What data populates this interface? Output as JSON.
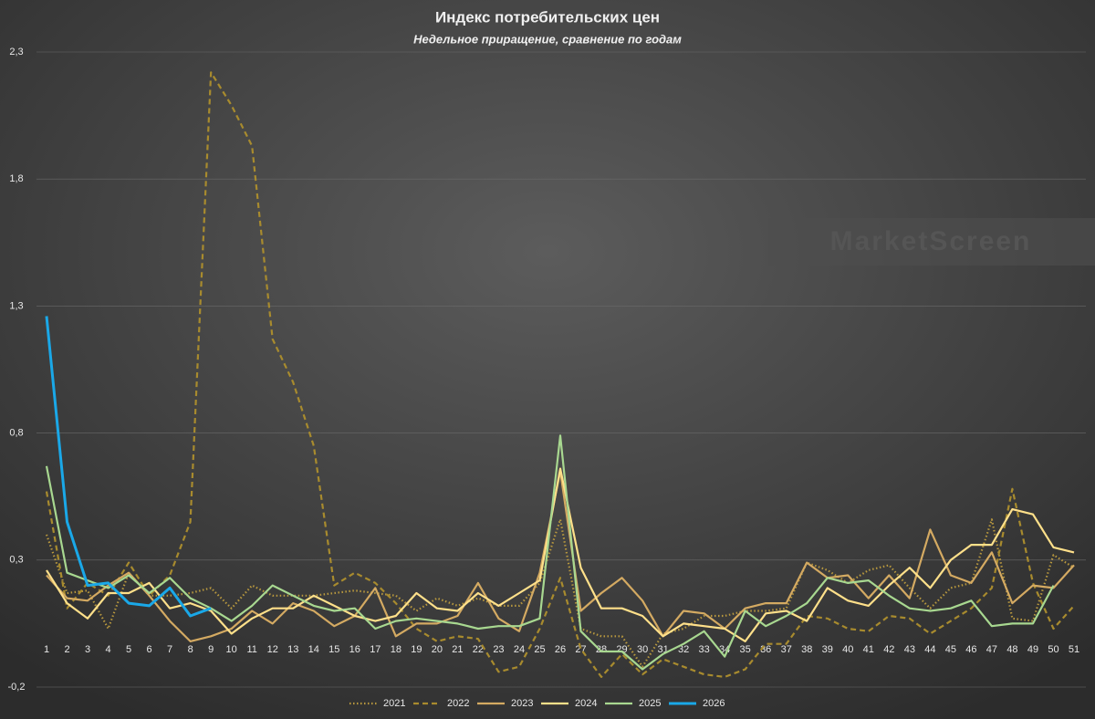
{
  "chart_data": {
    "type": "line",
    "title": "Индекс потребительских цен",
    "subtitle": "Недельное приращение, сравнение по годам",
    "watermark": "MarketScreen",
    "categories": [
      "1",
      "2",
      "3",
      "4",
      "5",
      "6",
      "7",
      "8",
      "9",
      "10",
      "11",
      "12",
      "13",
      "14",
      "15",
      "16",
      "17",
      "18",
      "19",
      "20",
      "21",
      "22",
      "23",
      "24",
      "25",
      "26",
      "27",
      "28",
      "29",
      "30",
      "31",
      "32",
      "33",
      "34",
      "35",
      "36",
      "37",
      "38",
      "39",
      "40",
      "41",
      "42",
      "43",
      "44",
      "45",
      "46",
      "47",
      "48",
      "49",
      "50",
      "51"
    ],
    "ylim": [
      -0.2,
      2.3
    ],
    "yticks": [
      {
        "value": -0.2,
        "label": "-0,2"
      },
      {
        "value": 0.3,
        "label": "0,3"
      },
      {
        "value": 0.8,
        "label": "0,8"
      },
      {
        "value": 1.3,
        "label": "1,3"
      },
      {
        "value": 1.8,
        "label": "1,8"
      },
      {
        "value": 2.3,
        "label": "2,3"
      }
    ],
    "grid": true,
    "legend": "bottom",
    "series": [
      {
        "name": "2021",
        "color": "#b8983e",
        "dash": "dotted",
        "values": [
          0.4,
          0.17,
          0.18,
          0.03,
          0.25,
          0.16,
          0.16,
          0.17,
          0.19,
          0.11,
          0.2,
          0.16,
          0.16,
          0.16,
          0.17,
          0.18,
          0.17,
          0.16,
          0.1,
          0.15,
          0.12,
          0.15,
          0.12,
          0.12,
          0.21,
          0.46,
          0.03,
          0,
          0,
          -0.12,
          0.01,
          0.03,
          0.08,
          0.08,
          0.1,
          0.1,
          0.11,
          0.29,
          0.26,
          0.21,
          0.26,
          0.28,
          0.19,
          0.11,
          0.19,
          0.21,
          0.46,
          0.07,
          0.06,
          0.32,
          0.27
        ]
      },
      {
        "name": "2022",
        "color": "#a88b2e",
        "dash": "dashed",
        "values": [
          0.57,
          0.11,
          0.21,
          0.16,
          0.29,
          0.16,
          0.24,
          0.45,
          2.22,
          2.09,
          1.93,
          1.17,
          1.0,
          0.75,
          0.2,
          0.25,
          0.21,
          0.13,
          0.03,
          -0.02,
          0,
          -0.01,
          -0.14,
          -0.12,
          0.03,
          0.23,
          -0.05,
          -0.16,
          -0.07,
          -0.15,
          -0.09,
          -0.12,
          -0.15,
          -0.16,
          -0.13,
          -0.03,
          -0.03,
          0.08,
          0.07,
          0.03,
          0.02,
          0.08,
          0.07,
          0.01,
          0.06,
          0.11,
          0.19,
          0.58,
          0.21,
          0.03,
          0.12
        ]
      },
      {
        "name": "2023",
        "color": "#d4aa62",
        "dash": "solid",
        "values": [
          0.24,
          0.15,
          0.14,
          0.2,
          0.25,
          0.16,
          0.06,
          -0.02,
          0,
          0.03,
          0.1,
          0.05,
          0.13,
          0.1,
          0.04,
          0.08,
          0.19,
          0,
          0.05,
          0.05,
          0.08,
          0.21,
          0.07,
          0.02,
          0.25,
          0.65,
          0.1,
          0.17,
          0.23,
          0.14,
          0,
          0.1,
          0.09,
          0.03,
          0.11,
          0.13,
          0.13,
          0.29,
          0.23,
          0.24,
          0.15,
          0.24,
          0.15,
          0.42,
          0.24,
          0.21,
          0.33,
          0.13,
          0.2,
          0.19,
          0.28
        ]
      },
      {
        "name": "2024",
        "color": "#ffe08a",
        "dash": "solid",
        "values": [
          0.26,
          0.13,
          0.07,
          0.17,
          0.17,
          0.21,
          0.11,
          0.13,
          0.1,
          0.01,
          0.07,
          0.11,
          0.11,
          0.16,
          0.12,
          0.08,
          0.06,
          0.08,
          0.17,
          0.11,
          0.1,
          0.17,
          0.12,
          0.17,
          0.22,
          0.66,
          0.27,
          0.11,
          0.11,
          0.08,
          0,
          0.05,
          0.04,
          0.03,
          -0.02,
          0.09,
          0.1,
          0.06,
          0.19,
          0.14,
          0.12,
          0.2,
          0.27,
          0.19,
          0.3,
          0.36,
          0.36,
          0.5,
          0.48,
          0.35,
          0.33
        ]
      },
      {
        "name": "2025",
        "color": "#a8d890",
        "dash": "solid",
        "values": [
          0.67,
          0.25,
          0.22,
          0.19,
          0.24,
          0.17,
          0.23,
          0.15,
          0.11,
          0.06,
          0.12,
          0.2,
          0.16,
          0.12,
          0.1,
          0.11,
          0.03,
          0.06,
          0.07,
          0.06,
          0.05,
          0.03,
          0.04,
          0.04,
          0.07,
          0.79,
          0.02,
          -0.06,
          -0.06,
          -0.13,
          -0.07,
          -0.03,
          0.02,
          -0.08,
          0.1,
          0.04,
          0.08,
          0.13,
          0.23,
          0.21,
          0.22,
          0.16,
          0.11,
          0.1,
          0.11,
          0.14,
          0.04,
          0.05,
          0.05,
          0.2,
          null
        ]
      },
      {
        "name": "2026",
        "color": "#1aa8e8",
        "dash": "solid",
        "width": 3,
        "values": [
          1.26,
          0.45,
          0.2,
          0.21,
          0.13,
          0.12,
          0.19,
          0.08,
          0.11,
          null,
          null,
          null,
          null,
          null,
          null,
          null,
          null,
          null,
          null,
          null,
          null,
          null,
          null,
          null,
          null,
          null,
          null,
          null,
          null,
          null,
          null,
          null,
          null,
          null,
          null,
          null,
          null,
          null,
          null,
          null,
          null,
          null,
          null,
          null,
          null,
          null,
          null,
          null,
          null,
          null,
          null
        ]
      }
    ]
  }
}
